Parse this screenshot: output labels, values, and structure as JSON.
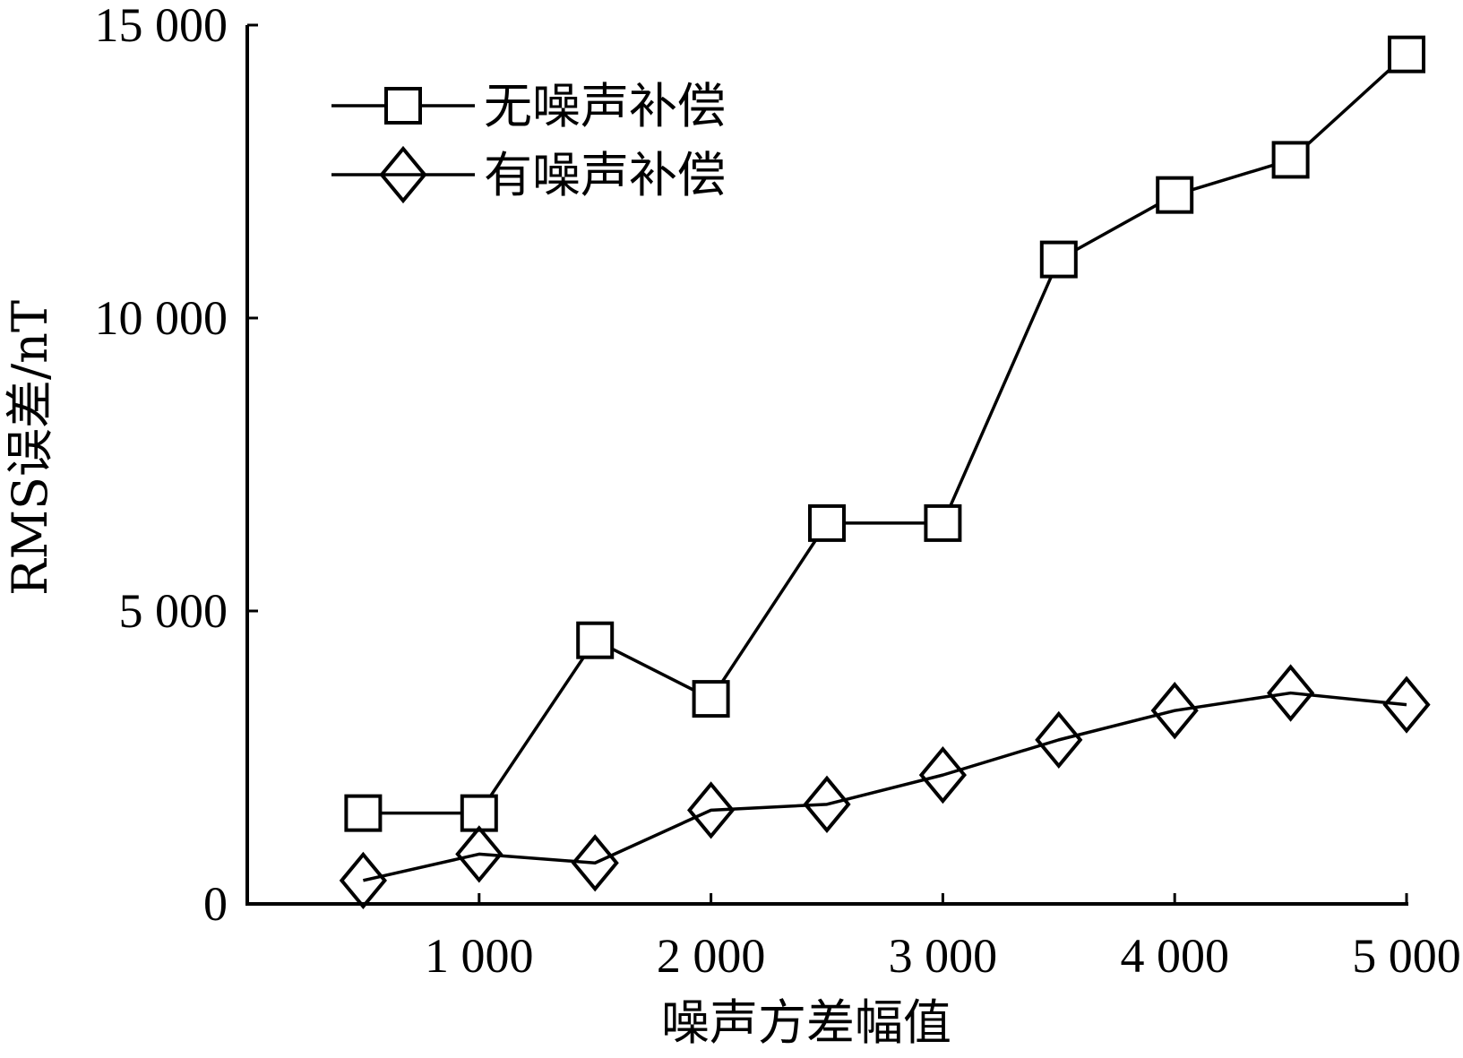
{
  "chart_data": {
    "type": "line",
    "title": "",
    "xlabel": "噪声方差幅值",
    "ylabel": "RMS误差/nT",
    "x": [
      500,
      1000,
      1500,
      2000,
      2500,
      3000,
      3500,
      4000,
      4500,
      5000
    ],
    "xlim": [
      0,
      5000
    ],
    "ylim": [
      0,
      15000
    ],
    "x_ticks": [
      1000,
      2000,
      3000,
      4000,
      5000
    ],
    "x_tick_labels": [
      "1 000",
      "2 000",
      "3 000",
      "4 000",
      "5 000"
    ],
    "y_ticks": [
      0,
      5000,
      10000,
      15000
    ],
    "y_tick_labels": [
      "0",
      "5 000",
      "10 000",
      "15 000"
    ],
    "grid": false,
    "legend_position": "top-left",
    "series": [
      {
        "name": "无噪声补偿",
        "marker": "square",
        "color": "#000000",
        "values": [
          1550,
          1550,
          4500,
          3500,
          6500,
          6500,
          11000,
          12100,
          12700,
          14500
        ]
      },
      {
        "name": "有噪声补偿",
        "marker": "diamond",
        "color": "#000000",
        "values": [
          400,
          850,
          700,
          1600,
          1700,
          2200,
          2800,
          3300,
          3600,
          3400
        ]
      }
    ]
  }
}
